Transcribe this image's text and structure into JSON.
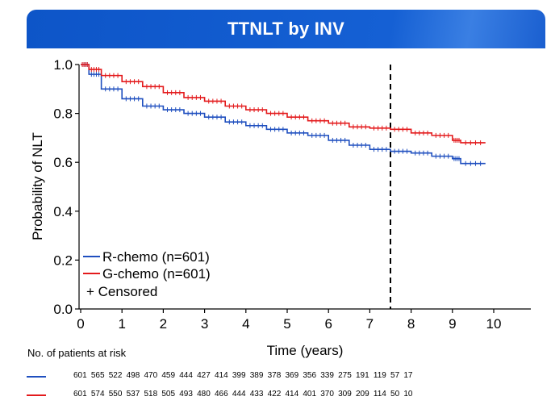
{
  "header": {
    "title": "TTNLT by INV"
  },
  "chart_data": {
    "type": "line",
    "title": "TTNLT by INV",
    "xlabel": "Time (years)",
    "ylabel": "Probability of NLT",
    "xlim": [
      0,
      10.6
    ],
    "ylim": [
      0,
      1.0
    ],
    "xticks": [
      "0",
      "1",
      "2",
      "3",
      "4",
      "5",
      "6",
      "7",
      "8",
      "9",
      "10"
    ],
    "yticks": [
      "0.0",
      "0.2",
      "0.4",
      "0.6",
      "0.8",
      "1.0"
    ],
    "reference_line_x": 7.5,
    "legend": [
      "R-chemo (n=601)",
      "G-chemo (n=601)",
      "+ Censored"
    ],
    "series": [
      {
        "name": "R-chemo (n=601)",
        "color": "#1f4fbf",
        "x": [
          0,
          0.2,
          0.5,
          1,
          1.5,
          2,
          2.5,
          3,
          3.5,
          4,
          4.5,
          5,
          5.5,
          6,
          6.5,
          7,
          7.5,
          8,
          8.5,
          9,
          9.2,
          9.8
        ],
        "y": [
          1.0,
          0.96,
          0.9,
          0.86,
          0.83,
          0.815,
          0.8,
          0.785,
          0.765,
          0.75,
          0.735,
          0.72,
          0.71,
          0.69,
          0.67,
          0.653,
          0.645,
          0.638,
          0.625,
          0.615,
          0.595,
          0.595
        ]
      },
      {
        "name": "G-chemo (n=601)",
        "color": "#e31a1c",
        "x": [
          0,
          0.2,
          0.5,
          1,
          1.5,
          2,
          2.5,
          3,
          3.5,
          4,
          4.5,
          5,
          5.5,
          6,
          6.5,
          7,
          7.5,
          8,
          8.5,
          9,
          9.2,
          9.8
        ],
        "y": [
          1.0,
          0.98,
          0.955,
          0.93,
          0.91,
          0.885,
          0.865,
          0.85,
          0.83,
          0.815,
          0.8,
          0.785,
          0.77,
          0.76,
          0.745,
          0.74,
          0.735,
          0.72,
          0.71,
          0.69,
          0.68,
          0.68
        ]
      }
    ],
    "risk_table": {
      "title": "No. of patients at risk",
      "rows": [
        {
          "series": "R-chemo",
          "color": "#1f4fbf",
          "values": [
            "601",
            "565",
            "522",
            "498",
            "470",
            "459",
            "444",
            "427",
            "414",
            "399",
            "389",
            "378",
            "369",
            "356",
            "339",
            "275",
            "191",
            "119",
            "57",
            "17"
          ]
        },
        {
          "series": "G-chemo",
          "color": "#e31a1c",
          "values": [
            "601",
            "574",
            "550",
            "537",
            "518",
            "505",
            "493",
            "480",
            "466",
            "444",
            "433",
            "422",
            "414",
            "401",
            "370",
            "309",
            "209",
            "114",
            "50",
            "10"
          ]
        }
      ]
    }
  }
}
